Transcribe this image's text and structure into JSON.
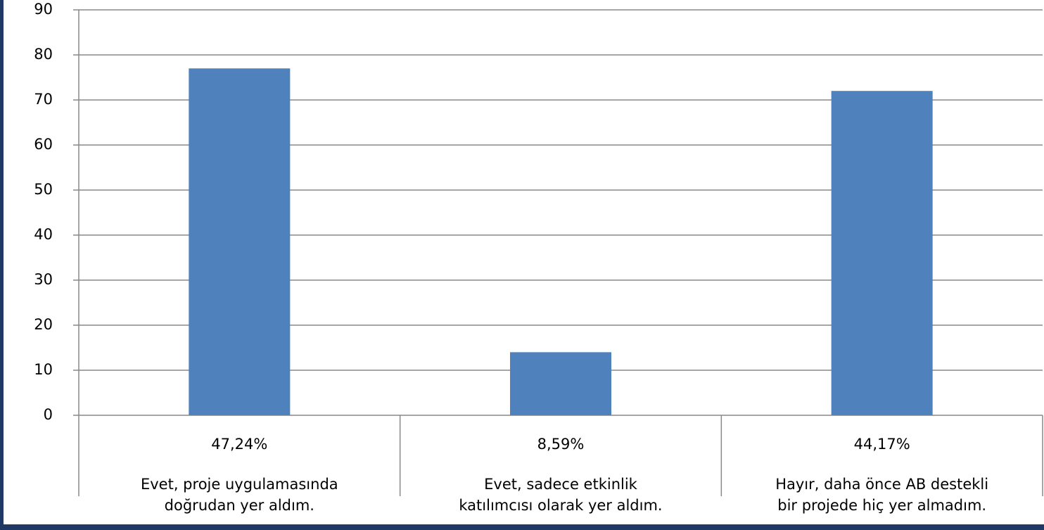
{
  "chart_data": {
    "type": "bar",
    "categories": [
      [
        "Evet, proje uygulamasında",
        "doğrudan yer aldım."
      ],
      [
        "Evet, sadece etkinlik",
        "katılımcısı olarak yer aldım."
      ],
      [
        "Hayır, daha önce AB destekli",
        "bir projede hiç yer almadım."
      ]
    ],
    "percent_labels": [
      "47,24%",
      "8,59%",
      "44,17%"
    ],
    "values": [
      77,
      14,
      72
    ],
    "color": "#4f81bd",
    "ylim": [
      0,
      90
    ],
    "yticks": [
      0,
      10,
      20,
      30,
      40,
      50,
      60,
      70,
      80,
      90
    ],
    "grid": true
  }
}
